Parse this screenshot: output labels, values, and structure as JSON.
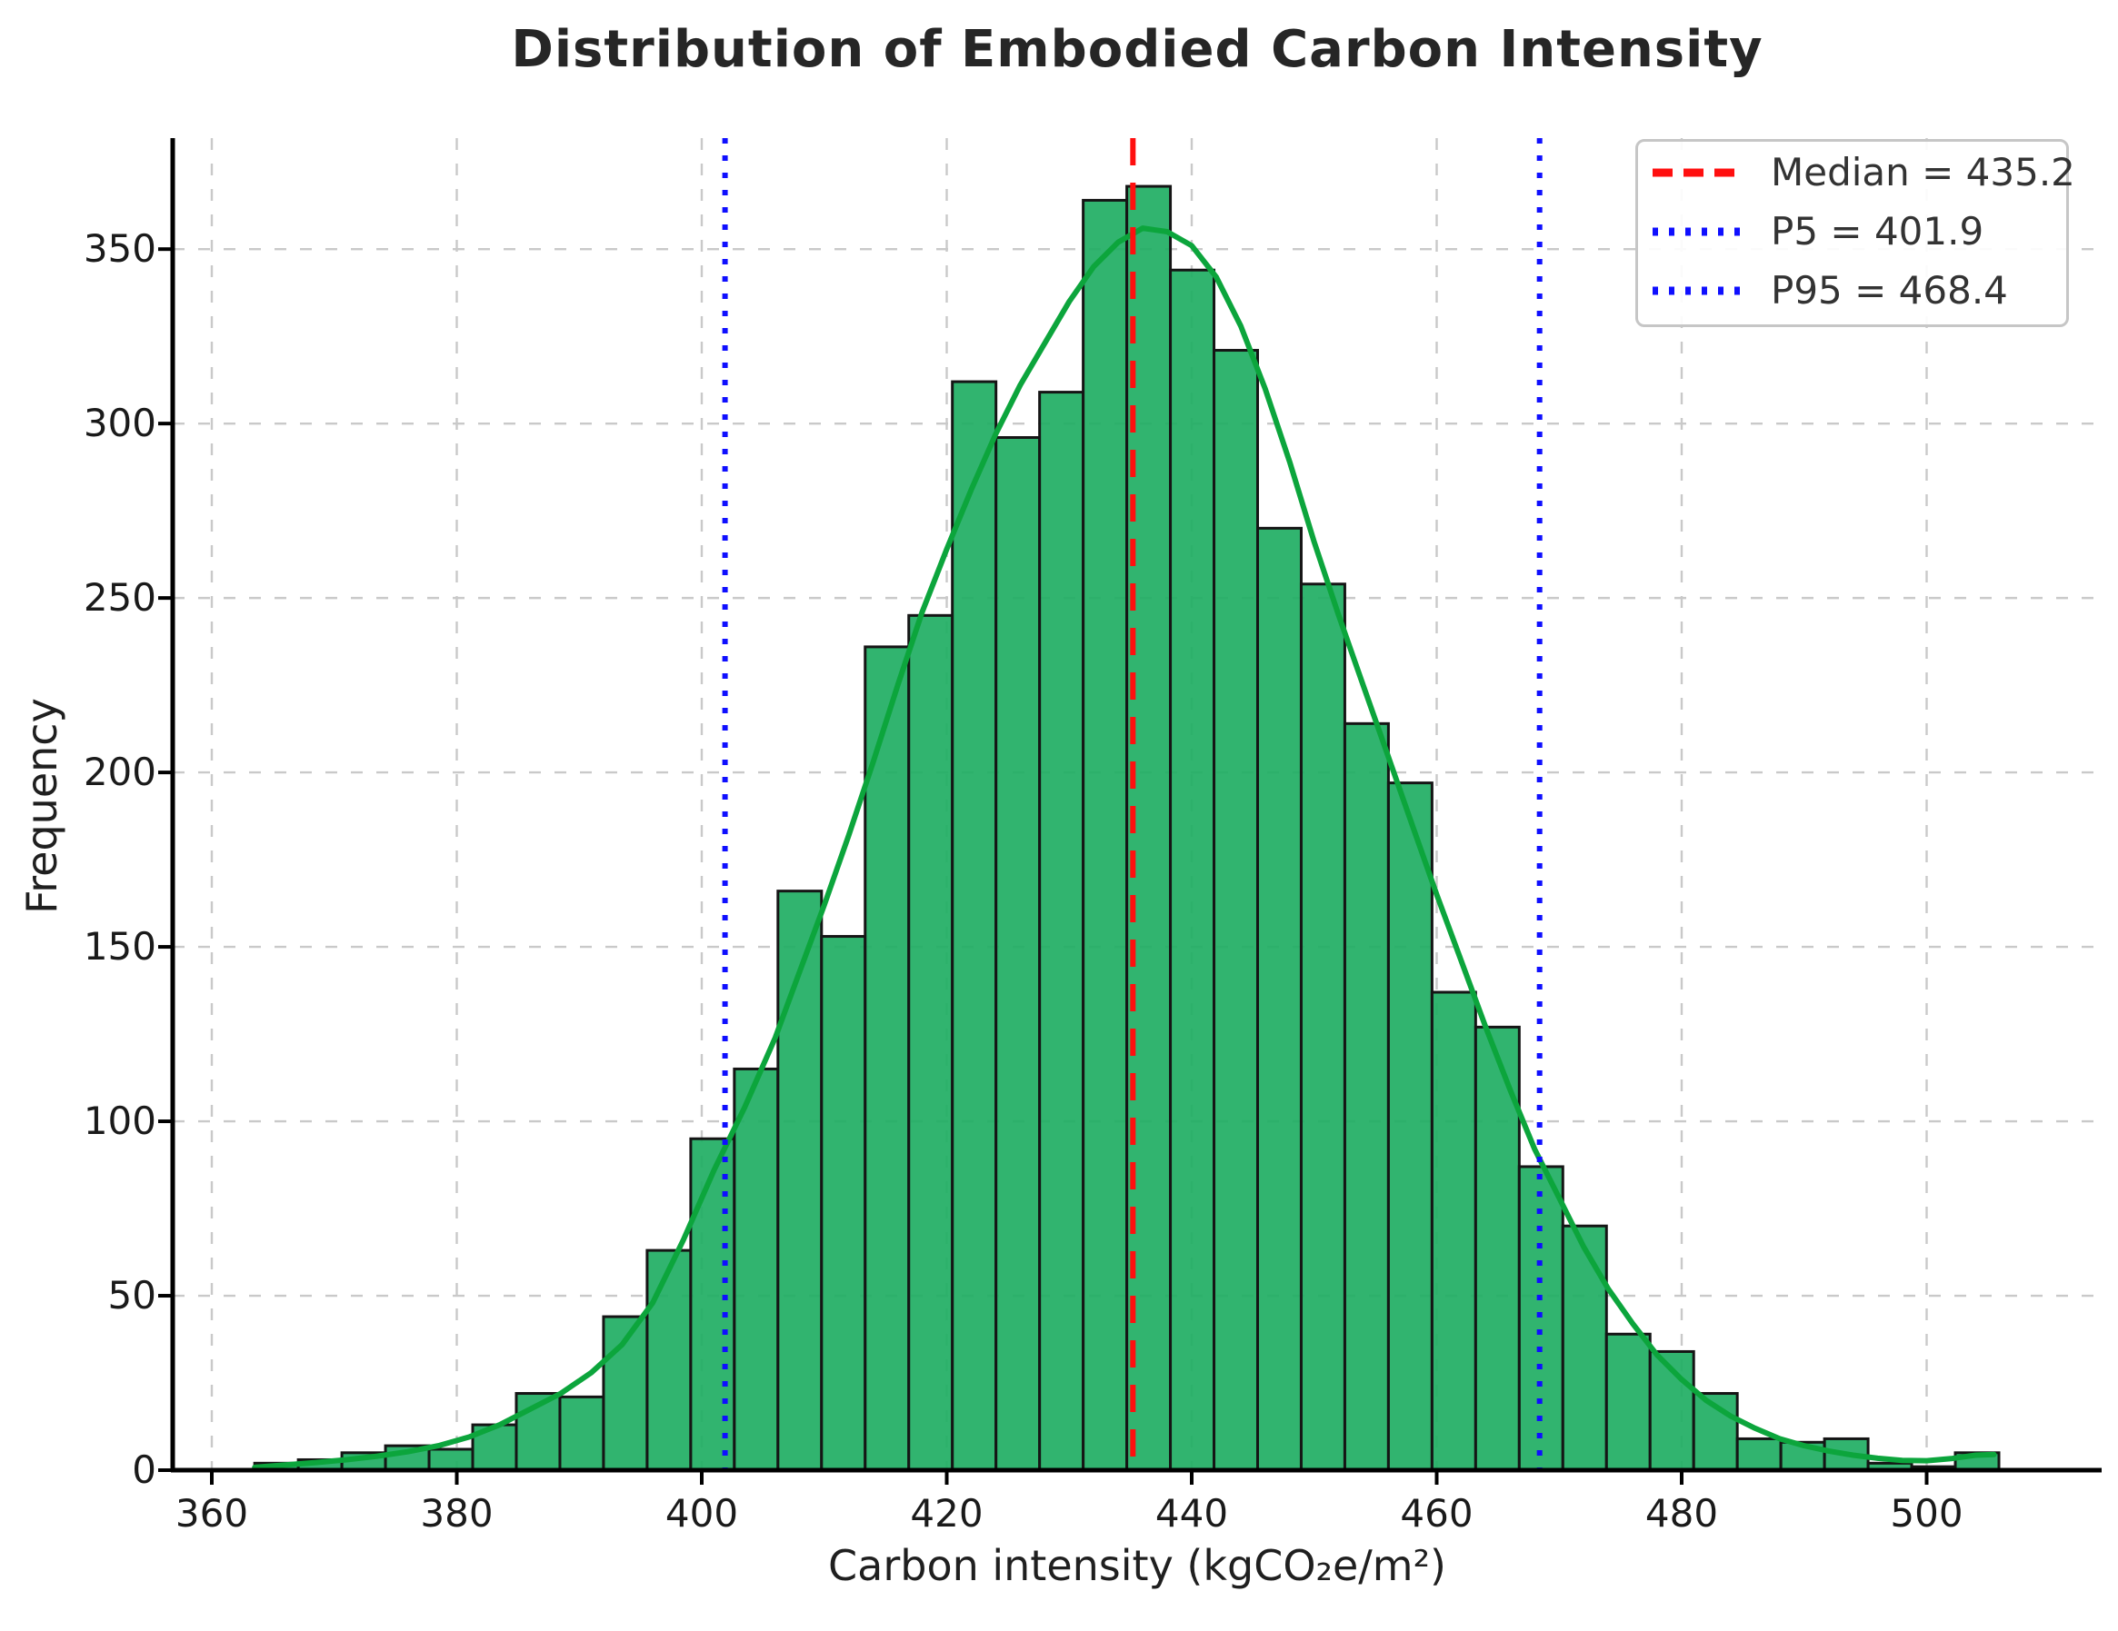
{
  "title": "Distribution of Embodied Carbon Intensity",
  "chart_data": {
    "type": "bar",
    "subtype": "histogram-with-kde",
    "title": "Distribution of Embodied Carbon Intensity",
    "xlabel": "Carbon intensity (kgCO₂e/m²)",
    "ylabel": "Frequency",
    "xlim": [
      356.8,
      514.3
    ],
    "ylim": [
      0,
      382
    ],
    "x_ticks": [
      360,
      380,
      400,
      420,
      440,
      460,
      480,
      500
    ],
    "y_ticks": [
      0,
      50,
      100,
      150,
      200,
      250,
      300,
      350
    ],
    "grid": true,
    "legend_position": "upper right",
    "bin_start": 363.5,
    "bin_width": 3.56,
    "frequencies": [
      2,
      3,
      5,
      7,
      6,
      13,
      22,
      21,
      44,
      63,
      95,
      115,
      166,
      153,
      236,
      245,
      312,
      296,
      309,
      364,
      368,
      344,
      321,
      270,
      254,
      214,
      197,
      137,
      127,
      87,
      70,
      39,
      34,
      22,
      9,
      8,
      9,
      2,
      1,
      5
    ],
    "kde_points": [
      [
        363.5,
        0.8
      ],
      [
        366,
        1.5
      ],
      [
        368.5,
        2.2
      ],
      [
        371,
        3
      ],
      [
        373.5,
        4
      ],
      [
        376,
        5.3
      ],
      [
        378.5,
        7
      ],
      [
        381,
        9.5
      ],
      [
        383.5,
        13
      ],
      [
        386,
        17.5
      ],
      [
        388.5,
        22
      ],
      [
        391,
        28
      ],
      [
        393.5,
        36
      ],
      [
        396,
        48
      ],
      [
        398.5,
        66
      ],
      [
        401,
        86
      ],
      [
        403.5,
        104
      ],
      [
        406,
        124
      ],
      [
        408,
        143
      ],
      [
        410,
        162
      ],
      [
        412,
        182
      ],
      [
        414,
        203
      ],
      [
        416,
        225
      ],
      [
        418,
        246
      ],
      [
        420,
        264
      ],
      [
        422,
        281
      ],
      [
        424,
        297
      ],
      [
        426,
        311
      ],
      [
        428,
        323
      ],
      [
        430,
        335
      ],
      [
        432,
        345
      ],
      [
        434,
        352
      ],
      [
        436,
        356
      ],
      [
        438,
        355
      ],
      [
        440,
        351
      ],
      [
        442,
        342
      ],
      [
        444,
        328
      ],
      [
        446,
        310
      ],
      [
        448,
        289
      ],
      [
        450,
        266
      ],
      [
        452,
        245
      ],
      [
        454,
        225
      ],
      [
        456,
        205
      ],
      [
        458,
        185
      ],
      [
        460,
        165
      ],
      [
        462,
        146
      ],
      [
        464,
        127
      ],
      [
        466,
        109
      ],
      [
        468,
        92
      ],
      [
        470,
        78
      ],
      [
        472,
        64
      ],
      [
        474,
        52
      ],
      [
        476,
        42
      ],
      [
        478,
        33
      ],
      [
        480,
        26
      ],
      [
        482,
        20
      ],
      [
        484,
        15.5
      ],
      [
        486,
        12
      ],
      [
        488,
        9
      ],
      [
        490,
        7
      ],
      [
        492,
        5.5
      ],
      [
        494,
        4.3
      ],
      [
        496,
        3.4
      ],
      [
        498,
        2.8
      ],
      [
        500,
        2.7
      ],
      [
        502,
        3.3
      ],
      [
        504,
        4.3
      ],
      [
        505.5,
        4.5
      ]
    ],
    "markers": [
      {
        "id": "median",
        "label": "Median = 435.2",
        "value": 435.2,
        "color": "#ff0f0f",
        "style": "dashed"
      },
      {
        "id": "p5",
        "label": "P5 = 401.9",
        "value": 401.9,
        "color": "#0f0fff",
        "style": "dotted"
      },
      {
        "id": "p95",
        "label": "P95 = 468.4",
        "value": 468.4,
        "color": "#0f0fff",
        "style": "dotted"
      }
    ],
    "colors": {
      "bar_fill": "#1fae63",
      "bar_edge": "#151515",
      "kde_line": "#0ca53c",
      "gridline": "#c9c9c9",
      "spine": "#000000",
      "text": "#1f1f1f"
    }
  }
}
